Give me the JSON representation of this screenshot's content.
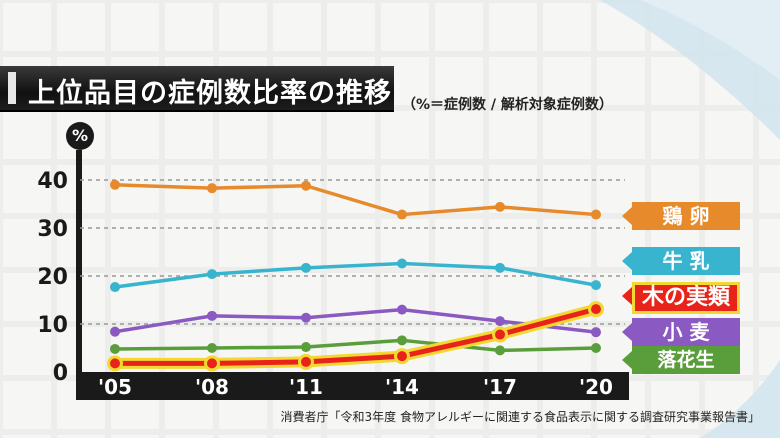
{
  "title": "上位品目の症例数比率の推移",
  "subtitle": "（%＝症例数 / 解析対象症例数）",
  "source": "消費者庁「令和3年度 食物アレルギーに関連する食品表示に関する調査研究事業報告書」",
  "colors": {
    "egg": "#e78a2b",
    "milk": "#39b4cf",
    "tree_nuts": "#e8241a",
    "wheat": "#8a59c2",
    "peanut": "#5a9e3c",
    "highlight_outline": "#f2d830"
  },
  "chart_data": {
    "type": "line",
    "title": "上位品目の症例数比率の推移",
    "xlabel": "",
    "ylabel": "%",
    "categories": [
      "'05",
      "'08",
      "'11",
      "'14",
      "'17",
      "'20"
    ],
    "ylim": [
      0,
      40
    ],
    "yticks": [
      0,
      10,
      20,
      30,
      40
    ],
    "grid": true,
    "legend": "right (labels at line ends)",
    "series": [
      {
        "name": "鶏 卵",
        "values": [
          39.0,
          38.3,
          38.8,
          32.8,
          34.4,
          32.8
        ],
        "color": "#e78a2b"
      },
      {
        "name": "牛 乳",
        "values": [
          17.7,
          20.4,
          21.7,
          22.6,
          21.7,
          18.1
        ],
        "color": "#39b4cf"
      },
      {
        "name": "小 麦",
        "values": [
          8.4,
          11.7,
          11.3,
          13.0,
          10.6,
          8.3
        ],
        "color": "#8a59c2"
      },
      {
        "name": "落花生",
        "values": [
          4.8,
          5.0,
          5.2,
          6.6,
          4.5,
          5.0
        ],
        "color": "#5a9e3c"
      },
      {
        "name": "木の実類",
        "values": [
          1.8,
          1.8,
          2.1,
          3.3,
          7.8,
          13.1
        ],
        "color": "#e8241a",
        "highlight": true
      }
    ]
  }
}
